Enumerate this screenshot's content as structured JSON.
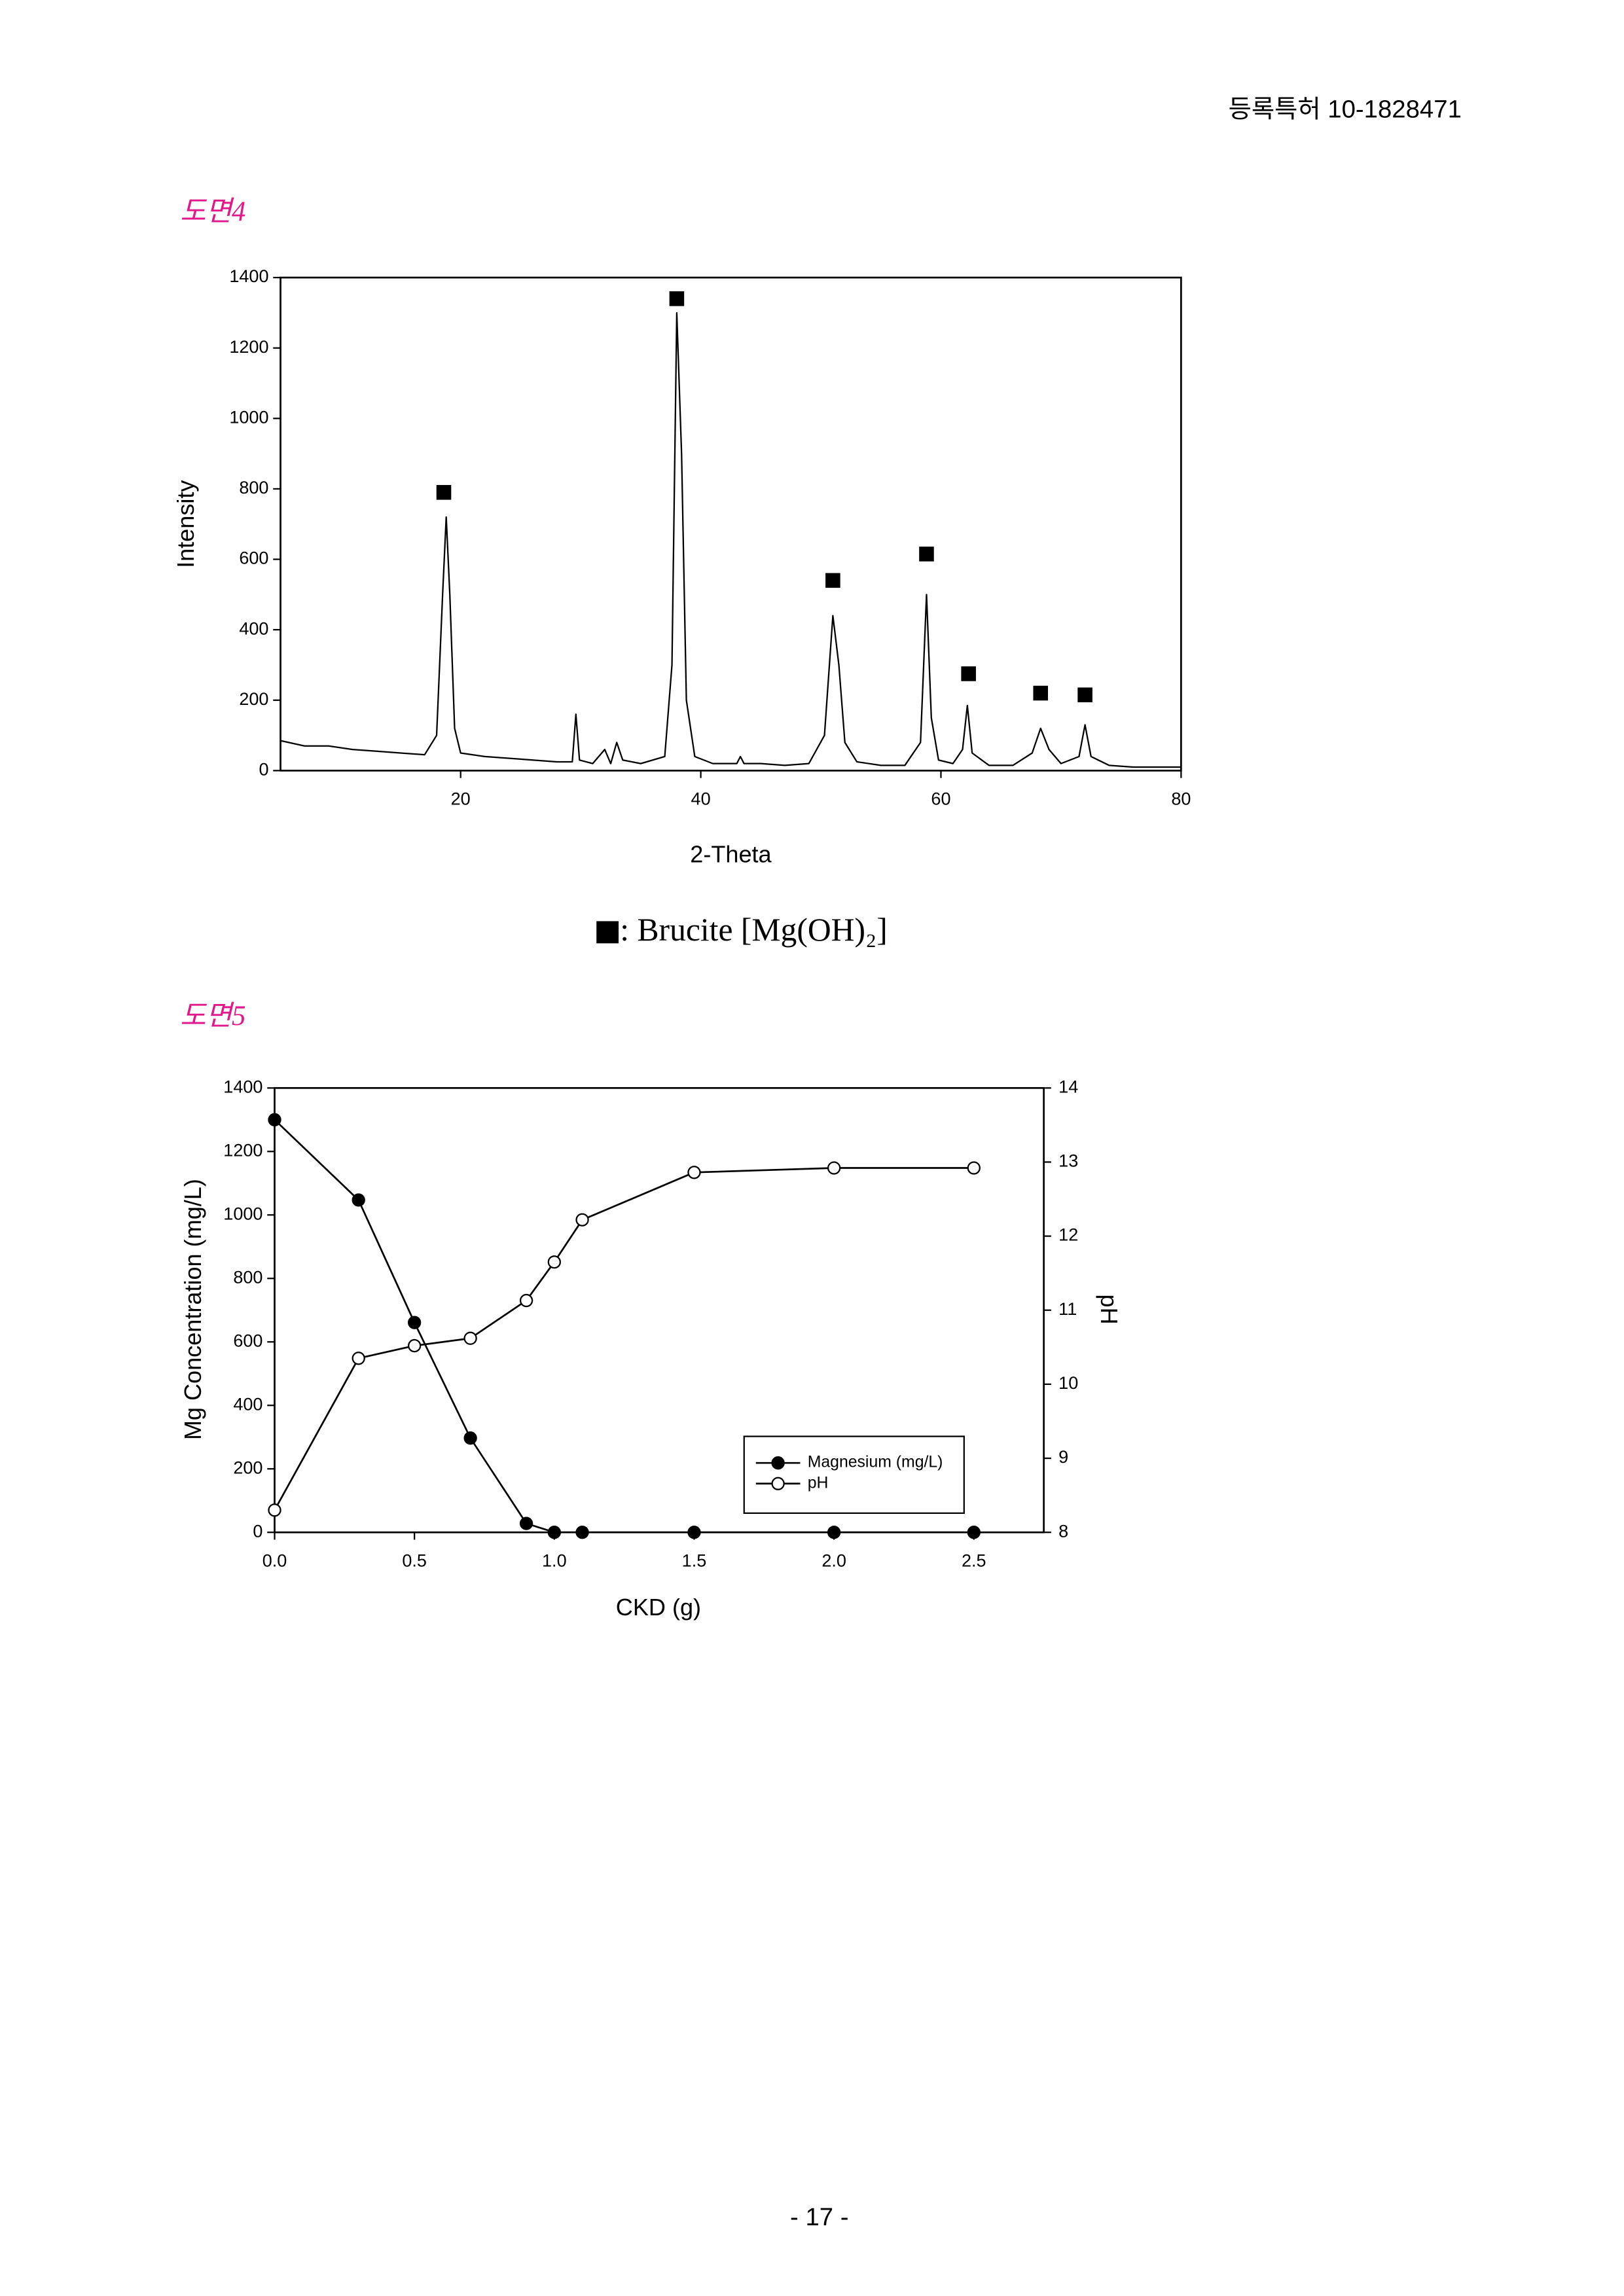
{
  "header": "등록특허 10-1828471",
  "figure_labels": [
    "도면4",
    "도면5"
  ],
  "page_number": "- 17 -",
  "chart_data": [
    {
      "type": "line",
      "x_label": "2-Theta",
      "y_label": "Intensity",
      "xlim": [
        5,
        80
      ],
      "xticks": [
        20,
        40,
        60,
        80
      ],
      "ylim": [
        0,
        1400
      ],
      "yticks": [
        0,
        200,
        400,
        600,
        800,
        1000,
        1200,
        1400
      ],
      "x": [
        5,
        7,
        9,
        11,
        13,
        15,
        17,
        18,
        18.5,
        18.8,
        19.1,
        19.5,
        20,
        22,
        24,
        26,
        28,
        29.3,
        29.6,
        29.9,
        31,
        32,
        32.5,
        33,
        33.5,
        35,
        37,
        37.6,
        38,
        38.4,
        38.8,
        39.5,
        41,
        43,
        43.3,
        43.6,
        45,
        47,
        49,
        50.3,
        51,
        51.5,
        52,
        53,
        55,
        57,
        58.3,
        58.8,
        59.2,
        59.8,
        61,
        61.8,
        62.2,
        62.6,
        64,
        66,
        67.6,
        68.3,
        69,
        70,
        71.5,
        72,
        72.5,
        74,
        76,
        78,
        80
      ],
      "series": [
        {
          "color": "#000000",
          "values": [
            85,
            70,
            70,
            60,
            55,
            50,
            45,
            100,
            500,
            720,
            500,
            120,
            50,
            40,
            35,
            30,
            25,
            25,
            160,
            30,
            20,
            60,
            20,
            80,
            30,
            20,
            40,
            300,
            1300,
            900,
            200,
            40,
            20,
            20,
            40,
            20,
            20,
            15,
            20,
            100,
            440,
            300,
            80,
            25,
            15,
            15,
            80,
            500,
            150,
            30,
            20,
            60,
            185,
            50,
            15,
            15,
            50,
            120,
            60,
            20,
            40,
            130,
            40,
            15,
            10,
            10,
            10
          ]
        }
      ],
      "markers": {
        "name": ": Brucite [Mg(OH)₂]",
        "color": "#000000",
        "x": [
          18.6,
          38,
          51,
          58.8,
          62.3,
          68.3,
          72
        ],
        "values": [
          790,
          1340,
          540,
          615,
          275,
          220,
          215
        ]
      }
    },
    {
      "type": "line",
      "x_label": "CKD (g)",
      "y_label": "Mg Concentration (mg/L)",
      "y2_label": "pH",
      "xlim": [
        0,
        2.75
      ],
      "xticks": [
        {
          "value": 0,
          "label": "0.0"
        },
        0.5,
        {
          "value": 1,
          "label": "1.0"
        },
        1.5,
        {
          "value": 2,
          "label": "2.0"
        },
        2.5
      ],
      "ylim": [
        0,
        1400
      ],
      "yticks": [
        0,
        200,
        400,
        600,
        800,
        1000,
        1200,
        1400
      ],
      "y2lim": [
        8,
        14
      ],
      "y2ticks": [
        8,
        9,
        10,
        11,
        12,
        13,
        14
      ],
      "legend": "lower right",
      "x": [
        0,
        0.3,
        0.5,
        0.7,
        0.9,
        1.0,
        1.1,
        1.5,
        2.0,
        2.5
      ],
      "series": [
        {
          "name": "Magnesium (mg/L)",
          "color": "#000000",
          "marker": "filled",
          "values": [
            1300,
            1047,
            661,
            297,
            28,
            0,
            0,
            0,
            0,
            0
          ]
        },
        {
          "name": "pH",
          "color": "#000000",
          "marker": "open",
          "axis": "y2",
          "values": [
            8.3,
            10.35,
            10.52,
            10.62,
            11.13,
            11.65,
            12.22,
            12.86,
            12.92,
            12.92
          ]
        }
      ]
    }
  ]
}
